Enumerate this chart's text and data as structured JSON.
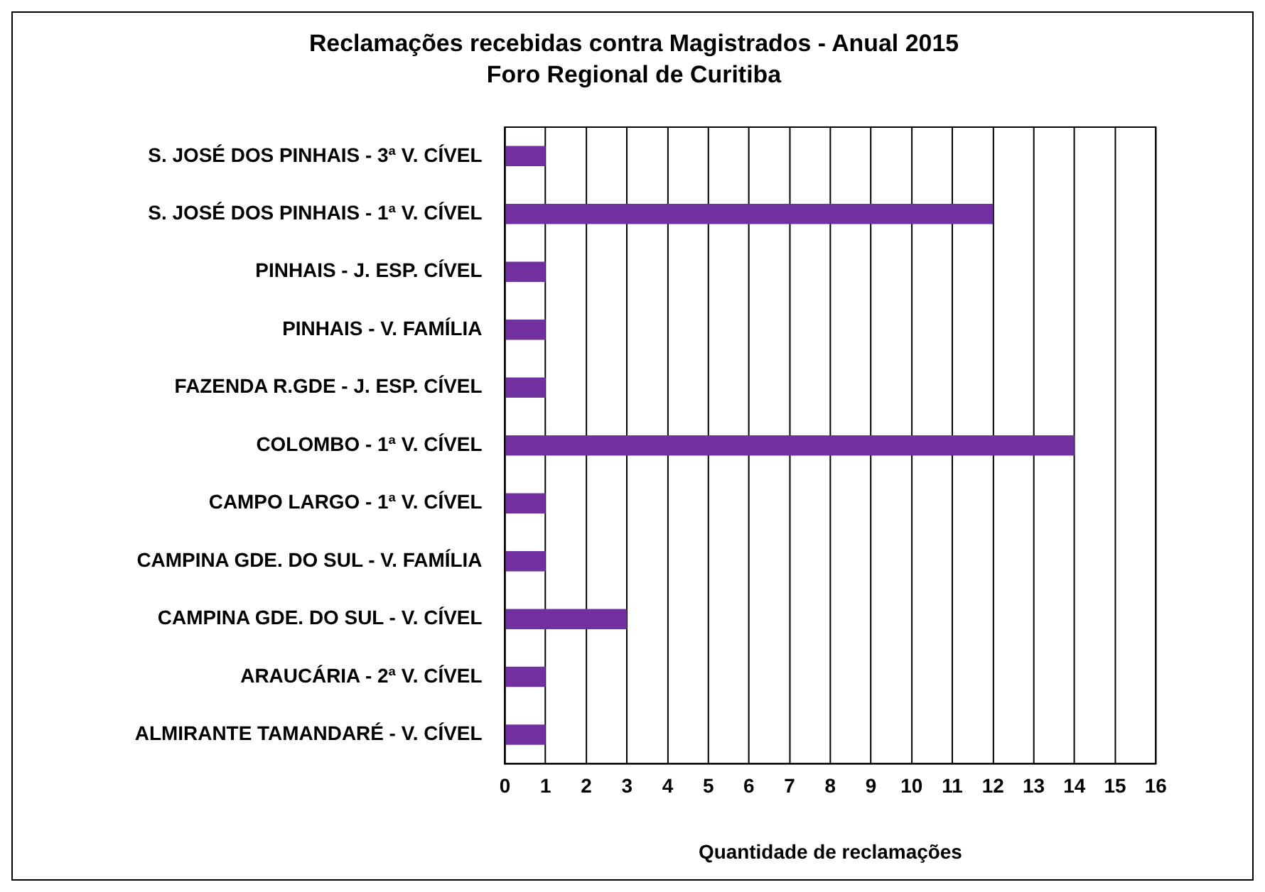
{
  "chart_data": {
    "type": "bar",
    "orientation": "horizontal",
    "title": "Reclamações recebidas contra Magistrados - Anual 2015",
    "subtitle": "Foro Regional de Curitiba",
    "xlabel": "Quantidade de reclamações",
    "categories": [
      "S. JOSÉ DOS PINHAIS - 3ª V. CÍVEL",
      "S. JOSÉ DOS PINHAIS - 1ª V. CÍVEL",
      "PINHAIS - J. ESP. CÍVEL",
      "PINHAIS - V. FAMÍLIA",
      "FAZENDA R.GDE - J. ESP. CÍVEL",
      "COLOMBO - 1ª V. CÍVEL",
      "CAMPO LARGO - 1ª V. CÍVEL",
      "CAMPINA GDE. DO SUL - V. FAMÍLIA",
      "CAMPINA GDE. DO SUL - V. CÍVEL",
      "ARAUCÁRIA - 2ª V. CÍVEL",
      "ALMIRANTE TAMANDARÉ - V. CÍVEL"
    ],
    "values": [
      1,
      12,
      1,
      1,
      1,
      14,
      1,
      1,
      3,
      1,
      1
    ],
    "color": "#7030a0",
    "xlim": [
      0,
      16
    ],
    "xticks": [
      0,
      1,
      2,
      3,
      4,
      5,
      6,
      7,
      8,
      9,
      10,
      11,
      12,
      13,
      14,
      15,
      16
    ],
    "grid": "x",
    "legend": false
  }
}
